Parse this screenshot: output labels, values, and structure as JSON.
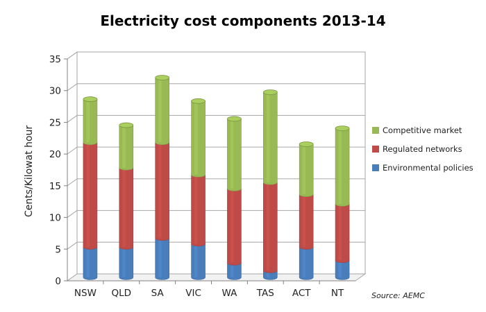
{
  "chart_data": {
    "type": "bar",
    "stacked": true,
    "title": "Electricity cost components 2013-14",
    "ylabel": "Cents/Kilowat hour",
    "xlabel": "",
    "ylim": [
      0,
      35
    ],
    "yticks": [
      0,
      5,
      10,
      15,
      20,
      25,
      30,
      35
    ],
    "categories": [
      "NSW",
      "QLD",
      "SA",
      "VIC",
      "WA",
      "TAS",
      "ACT",
      "NT"
    ],
    "series": [
      {
        "name": "Environmental policies",
        "color": "#4a7ebb",
        "values": [
          4.8,
          4.8,
          6.2,
          5.3,
          2.3,
          1.1,
          4.8,
          2.7
        ]
      },
      {
        "name": "Regulated networks",
        "color": "#be4b48",
        "values": [
          16.5,
          12.5,
          15.1,
          10.9,
          11.7,
          13.9,
          8.3,
          8.9
        ]
      },
      {
        "name": "Competitive market",
        "color": "#98b954",
        "values": [
          6.8,
          6.7,
          10.2,
          11.6,
          11.0,
          14.2,
          7.9,
          11.9
        ]
      }
    ],
    "grid": true,
    "legend_position": "right",
    "source": "Source: AEMC"
  }
}
